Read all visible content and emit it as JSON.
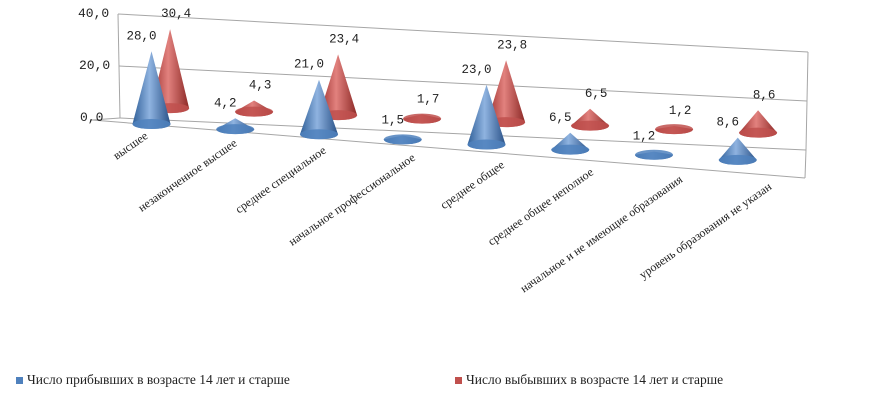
{
  "chart_data": {
    "type": "bar",
    "bar_shape": "3d-cone",
    "categories": [
      "высшее",
      "незаконченное высшее",
      "среднее специальное",
      "начальное профессиональное",
      "среднее общее",
      "среднее общее неполное",
      "начальное и не имеющие образования",
      "уровень образования  не указан"
    ],
    "series": [
      {
        "name": "Число прибывших в возрасте 14 лет и старше",
        "color": "#4f81bd",
        "values": [
          28.0,
          4.2,
          21.0,
          1.5,
          23.0,
          6.5,
          1.2,
          8.6
        ],
        "labels": [
          "28,0",
          "4,2",
          "21,0",
          "1,5",
          "23,0",
          "6,5",
          "1,2",
          "8,6"
        ]
      },
      {
        "name": "Число выбывших в возрасте 14 лет и старше",
        "color": "#c0504d",
        "values": [
          30.4,
          4.3,
          23.4,
          1.7,
          23.8,
          6.5,
          1.2,
          8.6
        ],
        "labels": [
          "30,4",
          "4,3",
          "23,4",
          "1,7",
          "23,8",
          "6,5",
          "1,2",
          "8,6"
        ]
      }
    ],
    "yticks": [
      "0,0",
      "20,0",
      "40,0"
    ],
    "ylim": [
      0,
      40
    ],
    "grid": true,
    "legend_position": "bottom",
    "title": "",
    "xlabel": "",
    "ylabel": ""
  }
}
